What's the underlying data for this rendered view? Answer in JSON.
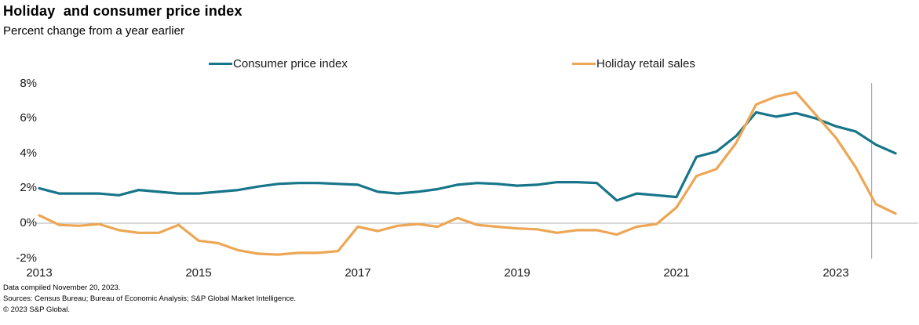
{
  "header": {
    "title": "Holiday  and consumer price index",
    "subtitle": "Percent change from a year earlier"
  },
  "legend": [
    {
      "label": "Consumer price index",
      "color": "#17758a"
    },
    {
      "label": "Holiday retail sales",
      "color": "#eca654"
    }
  ],
  "chart_data": {
    "type": "line",
    "title": "Holiday and consumer price index",
    "subtitle": "Percent change from a year earlier",
    "frequency": "quarterly",
    "x_start_year": 2013,
    "x_step_years": 0.25,
    "xlim": [
      2013,
      2024.05
    ],
    "ylim": [
      -2,
      8
    ],
    "grid": "zero-line-only",
    "legend_position": "top",
    "x_ticks": [
      "2013",
      "2015",
      "2017",
      "2019",
      "2021",
      "2023"
    ],
    "y_ticks": [
      "8%",
      "6%",
      "4%",
      "2%",
      "0%",
      "-2%"
    ],
    "y_tick_values": [
      8,
      6,
      4,
      2,
      0,
      -2
    ],
    "zero_line_value": 0,
    "reference_line_year": 2023.45,
    "periods": [
      "2013 Q1",
      "2013 Q2",
      "2013 Q3",
      "2013 Q4",
      "2014 Q1",
      "2014 Q2",
      "2014 Q3",
      "2014 Q4",
      "2015 Q1",
      "2015 Q2",
      "2015 Q3",
      "2015 Q4",
      "2016 Q1",
      "2016 Q2",
      "2016 Q3",
      "2016 Q4",
      "2017 Q1",
      "2017 Q2",
      "2017 Q3",
      "2017 Q4",
      "2018 Q1",
      "2018 Q2",
      "2018 Q3",
      "2018 Q4",
      "2019 Q1",
      "2019 Q2",
      "2019 Q3",
      "2019 Q4",
      "2020 Q1",
      "2020 Q2",
      "2020 Q3",
      "2020 Q4",
      "2021 Q1",
      "2021 Q2",
      "2021 Q3",
      "2021 Q4",
      "2022 Q1",
      "2022 Q2",
      "2022 Q3",
      "2022 Q4",
      "2023 Q1",
      "2023 Q2",
      "2023 Q3",
      "2023 Q4"
    ],
    "series": [
      {
        "name": "Consumer price index",
        "color": "#17758a",
        "values": [
          2.0,
          1.7,
          1.7,
          1.7,
          1.6,
          1.9,
          1.8,
          1.7,
          1.7,
          1.8,
          1.9,
          2.1,
          2.25,
          2.3,
          2.3,
          2.25,
          2.2,
          1.8,
          1.7,
          1.8,
          1.95,
          2.2,
          2.3,
          2.25,
          2.15,
          2.2,
          2.35,
          2.35,
          2.3,
          1.3,
          1.7,
          1.6,
          1.5,
          3.8,
          4.1,
          5.0,
          6.35,
          6.1,
          6.3,
          6.0,
          5.55,
          5.25,
          4.5,
          4.0
        ]
      },
      {
        "name": "Holiday retail sales",
        "color": "#eca654",
        "values": [
          0.45,
          -0.1,
          -0.15,
          -0.05,
          -0.4,
          -0.55,
          -0.55,
          -0.1,
          -1.0,
          -1.15,
          -1.55,
          -1.75,
          -1.8,
          -1.7,
          -1.7,
          -1.6,
          -0.2,
          -0.45,
          -0.15,
          -0.05,
          -0.2,
          0.3,
          -0.1,
          -0.2,
          -0.3,
          -0.35,
          -0.55,
          -0.4,
          -0.4,
          -0.65,
          -0.2,
          -0.05,
          0.9,
          2.7,
          3.1,
          4.6,
          6.8,
          7.25,
          7.5,
          6.2,
          4.9,
          3.2,
          1.1,
          0.55
        ]
      }
    ]
  },
  "colors": {
    "zero_line": "#b3b3b3",
    "reference_line": "#9c9c9c"
  },
  "footer": {
    "line1": "Data compiled November 20, 2023.",
    "line2": "Sources: Census Bureau; Bureau of Economic Analysis; S&P Global Market Intelligence.",
    "line3": "© 2023  S&P Global."
  }
}
